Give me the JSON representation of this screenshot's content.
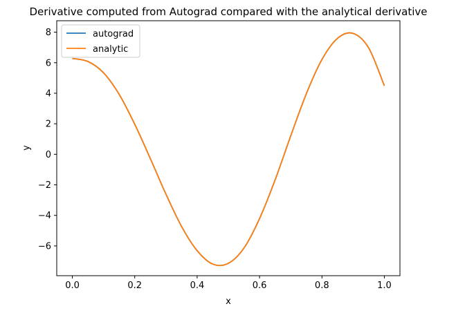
{
  "chart_data": {
    "type": "line",
    "title": "Derivative computed from Autograd compared with the analytical derivative",
    "xlabel": "x",
    "ylabel": "y",
    "xlim": [
      -0.05,
      1.05
    ],
    "ylim": [
      -7.95,
      8.75
    ],
    "xticks": [
      0.0,
      0.2,
      0.4,
      0.6,
      0.8,
      1.0
    ],
    "xtick_labels": [
      "0.0",
      "0.2",
      "0.4",
      "0.6",
      "0.8",
      "1.0"
    ],
    "yticks": [
      -6,
      -4,
      -2,
      0,
      2,
      4,
      6,
      8
    ],
    "ytick_labels": [
      "−6",
      "−4",
      "−2",
      "0",
      "2",
      "4",
      "6",
      "8"
    ],
    "grid": false,
    "legend_position": "upper-left",
    "x": [
      0.0,
      0.05,
      0.1,
      0.15,
      0.2,
      0.25,
      0.3,
      0.35,
      0.4,
      0.45,
      0.5,
      0.55,
      0.6,
      0.65,
      0.7,
      0.75,
      0.8,
      0.85,
      0.9,
      0.95,
      1.0
    ],
    "series": [
      {
        "name": "autograd",
        "color": "#1f77b4",
        "values": [
          6.28,
          6.08,
          5.34,
          3.93,
          1.97,
          -0.28,
          -2.61,
          -4.72,
          -6.31,
          -7.19,
          -7.14,
          -6.14,
          -4.21,
          -1.67,
          1.21,
          3.97,
          6.21,
          7.6,
          7.92,
          6.96,
          4.49
        ]
      },
      {
        "name": "analytic",
        "color": "#ff7f0e",
        "values": [
          6.28,
          6.08,
          5.34,
          3.93,
          1.97,
          -0.28,
          -2.61,
          -4.72,
          -6.31,
          -7.19,
          -7.14,
          -6.14,
          -4.21,
          -1.67,
          1.21,
          3.97,
          6.21,
          7.6,
          7.92,
          6.96,
          4.49
        ]
      }
    ]
  }
}
